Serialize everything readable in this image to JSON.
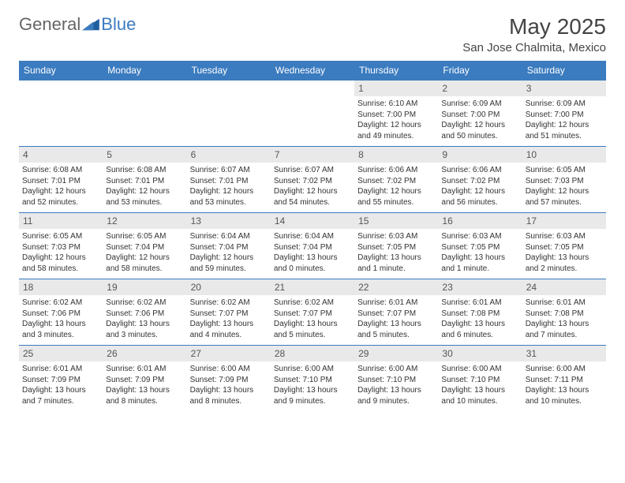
{
  "brand": {
    "part1": "General",
    "part2": "Blue"
  },
  "header": {
    "month_title": "May 2025",
    "location": "San Jose Chalmita, Mexico"
  },
  "colors": {
    "accent": "#3b7bbf",
    "daynum_bg": "#e9e9e9",
    "text": "#333333",
    "header_text": "#ffffff"
  },
  "weekdays": [
    "Sunday",
    "Monday",
    "Tuesday",
    "Wednesday",
    "Thursday",
    "Friday",
    "Saturday"
  ],
  "weeks": [
    [
      null,
      null,
      null,
      null,
      {
        "n": "1",
        "sr": "Sunrise: 6:10 AM",
        "ss": "Sunset: 7:00 PM",
        "dl1": "Daylight: 12 hours",
        "dl2": "and 49 minutes."
      },
      {
        "n": "2",
        "sr": "Sunrise: 6:09 AM",
        "ss": "Sunset: 7:00 PM",
        "dl1": "Daylight: 12 hours",
        "dl2": "and 50 minutes."
      },
      {
        "n": "3",
        "sr": "Sunrise: 6:09 AM",
        "ss": "Sunset: 7:00 PM",
        "dl1": "Daylight: 12 hours",
        "dl2": "and 51 minutes."
      }
    ],
    [
      {
        "n": "4",
        "sr": "Sunrise: 6:08 AM",
        "ss": "Sunset: 7:01 PM",
        "dl1": "Daylight: 12 hours",
        "dl2": "and 52 minutes."
      },
      {
        "n": "5",
        "sr": "Sunrise: 6:08 AM",
        "ss": "Sunset: 7:01 PM",
        "dl1": "Daylight: 12 hours",
        "dl2": "and 53 minutes."
      },
      {
        "n": "6",
        "sr": "Sunrise: 6:07 AM",
        "ss": "Sunset: 7:01 PM",
        "dl1": "Daylight: 12 hours",
        "dl2": "and 53 minutes."
      },
      {
        "n": "7",
        "sr": "Sunrise: 6:07 AM",
        "ss": "Sunset: 7:02 PM",
        "dl1": "Daylight: 12 hours",
        "dl2": "and 54 minutes."
      },
      {
        "n": "8",
        "sr": "Sunrise: 6:06 AM",
        "ss": "Sunset: 7:02 PM",
        "dl1": "Daylight: 12 hours",
        "dl2": "and 55 minutes."
      },
      {
        "n": "9",
        "sr": "Sunrise: 6:06 AM",
        "ss": "Sunset: 7:02 PM",
        "dl1": "Daylight: 12 hours",
        "dl2": "and 56 minutes."
      },
      {
        "n": "10",
        "sr": "Sunrise: 6:05 AM",
        "ss": "Sunset: 7:03 PM",
        "dl1": "Daylight: 12 hours",
        "dl2": "and 57 minutes."
      }
    ],
    [
      {
        "n": "11",
        "sr": "Sunrise: 6:05 AM",
        "ss": "Sunset: 7:03 PM",
        "dl1": "Daylight: 12 hours",
        "dl2": "and 58 minutes."
      },
      {
        "n": "12",
        "sr": "Sunrise: 6:05 AM",
        "ss": "Sunset: 7:04 PM",
        "dl1": "Daylight: 12 hours",
        "dl2": "and 58 minutes."
      },
      {
        "n": "13",
        "sr": "Sunrise: 6:04 AM",
        "ss": "Sunset: 7:04 PM",
        "dl1": "Daylight: 12 hours",
        "dl2": "and 59 minutes."
      },
      {
        "n": "14",
        "sr": "Sunrise: 6:04 AM",
        "ss": "Sunset: 7:04 PM",
        "dl1": "Daylight: 13 hours",
        "dl2": "and 0 minutes."
      },
      {
        "n": "15",
        "sr": "Sunrise: 6:03 AM",
        "ss": "Sunset: 7:05 PM",
        "dl1": "Daylight: 13 hours",
        "dl2": "and 1 minute."
      },
      {
        "n": "16",
        "sr": "Sunrise: 6:03 AM",
        "ss": "Sunset: 7:05 PM",
        "dl1": "Daylight: 13 hours",
        "dl2": "and 1 minute."
      },
      {
        "n": "17",
        "sr": "Sunrise: 6:03 AM",
        "ss": "Sunset: 7:05 PM",
        "dl1": "Daylight: 13 hours",
        "dl2": "and 2 minutes."
      }
    ],
    [
      {
        "n": "18",
        "sr": "Sunrise: 6:02 AM",
        "ss": "Sunset: 7:06 PM",
        "dl1": "Daylight: 13 hours",
        "dl2": "and 3 minutes."
      },
      {
        "n": "19",
        "sr": "Sunrise: 6:02 AM",
        "ss": "Sunset: 7:06 PM",
        "dl1": "Daylight: 13 hours",
        "dl2": "and 3 minutes."
      },
      {
        "n": "20",
        "sr": "Sunrise: 6:02 AM",
        "ss": "Sunset: 7:07 PM",
        "dl1": "Daylight: 13 hours",
        "dl2": "and 4 minutes."
      },
      {
        "n": "21",
        "sr": "Sunrise: 6:02 AM",
        "ss": "Sunset: 7:07 PM",
        "dl1": "Daylight: 13 hours",
        "dl2": "and 5 minutes."
      },
      {
        "n": "22",
        "sr": "Sunrise: 6:01 AM",
        "ss": "Sunset: 7:07 PM",
        "dl1": "Daylight: 13 hours",
        "dl2": "and 5 minutes."
      },
      {
        "n": "23",
        "sr": "Sunrise: 6:01 AM",
        "ss": "Sunset: 7:08 PM",
        "dl1": "Daylight: 13 hours",
        "dl2": "and 6 minutes."
      },
      {
        "n": "24",
        "sr": "Sunrise: 6:01 AM",
        "ss": "Sunset: 7:08 PM",
        "dl1": "Daylight: 13 hours",
        "dl2": "and 7 minutes."
      }
    ],
    [
      {
        "n": "25",
        "sr": "Sunrise: 6:01 AM",
        "ss": "Sunset: 7:09 PM",
        "dl1": "Daylight: 13 hours",
        "dl2": "and 7 minutes."
      },
      {
        "n": "26",
        "sr": "Sunrise: 6:01 AM",
        "ss": "Sunset: 7:09 PM",
        "dl1": "Daylight: 13 hours",
        "dl2": "and 8 minutes."
      },
      {
        "n": "27",
        "sr": "Sunrise: 6:00 AM",
        "ss": "Sunset: 7:09 PM",
        "dl1": "Daylight: 13 hours",
        "dl2": "and 8 minutes."
      },
      {
        "n": "28",
        "sr": "Sunrise: 6:00 AM",
        "ss": "Sunset: 7:10 PM",
        "dl1": "Daylight: 13 hours",
        "dl2": "and 9 minutes."
      },
      {
        "n": "29",
        "sr": "Sunrise: 6:00 AM",
        "ss": "Sunset: 7:10 PM",
        "dl1": "Daylight: 13 hours",
        "dl2": "and 9 minutes."
      },
      {
        "n": "30",
        "sr": "Sunrise: 6:00 AM",
        "ss": "Sunset: 7:10 PM",
        "dl1": "Daylight: 13 hours",
        "dl2": "and 10 minutes."
      },
      {
        "n": "31",
        "sr": "Sunrise: 6:00 AM",
        "ss": "Sunset: 7:11 PM",
        "dl1": "Daylight: 13 hours",
        "dl2": "and 10 minutes."
      }
    ]
  ]
}
